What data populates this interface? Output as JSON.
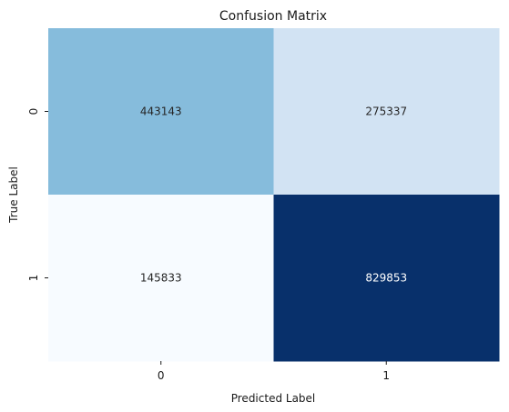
{
  "chart_data": {
    "type": "heatmap",
    "title": "Confusion Matrix",
    "xlabel": "Predicted Label",
    "ylabel": "True Label",
    "x_categories": [
      "0",
      "1"
    ],
    "y_categories": [
      "0",
      "1"
    ],
    "values": [
      [
        443143,
        275337
      ],
      [
        145833,
        829853
      ]
    ],
    "value_labels": [
      [
        "443143",
        "275337"
      ],
      [
        "145833",
        "829853"
      ]
    ],
    "colormap": "Blues",
    "colorbar": false,
    "cell_colors": [
      [
        "#86bcdc",
        "#d2e3f3"
      ],
      [
        "#f7fbff",
        "#08306b"
      ]
    ],
    "text_colors": [
      [
        "#262626",
        "#262626"
      ],
      [
        "#262626",
        "#ffffff"
      ]
    ]
  }
}
